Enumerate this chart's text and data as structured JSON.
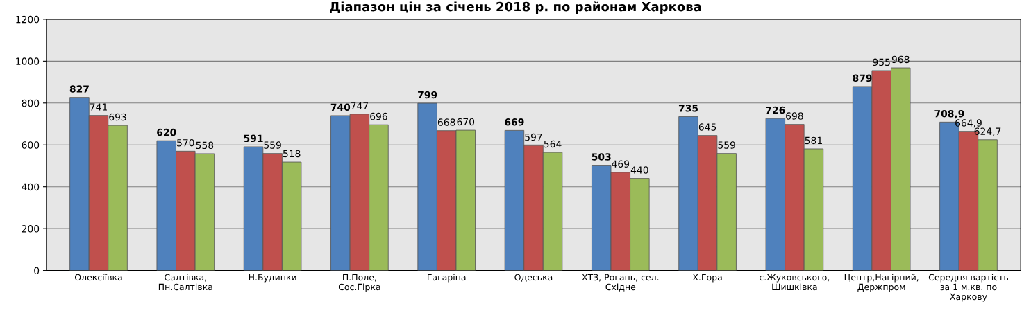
{
  "chart_data": {
    "type": "bar",
    "title": "Діапазон цін за січень 2018 р. по районам Харкова",
    "categories": [
      "Олексіївка",
      "Салтівка,\nПн.Салтівка",
      "Н.Будинки",
      "П.Поле,\nСос.Гірка",
      "Гагаріна",
      "Одеська",
      "ХТЗ, Рогань, сел.\nСхідне",
      "Х.Гора",
      "с.Жуковського,\nШишківка",
      "Центр,Нагірний,\nДержпром",
      "Середня вартість\nза 1 м.кв. по\nХаркову"
    ],
    "series": [
      {
        "color": "#4f81bd",
        "values": [
          827,
          620,
          591,
          740,
          799,
          669,
          503,
          735,
          726,
          879,
          708.9
        ],
        "value_labels": [
          "827",
          "620",
          "591",
          "740",
          "799",
          "669",
          "503",
          "735",
          "726",
          "879",
          "708,9"
        ]
      },
      {
        "color": "#c0504d",
        "values": [
          741,
          570,
          559,
          747,
          668,
          597,
          469,
          645,
          698,
          955,
          664.9
        ],
        "value_labels": [
          "741",
          "570",
          "559",
          "747",
          "668",
          "597",
          "469",
          "645",
          "698",
          "955",
          "664,9"
        ]
      },
      {
        "color": "#9bbb59",
        "values": [
          693,
          558,
          518,
          696,
          670,
          564,
          440,
          559,
          581,
          968,
          624.7
        ],
        "value_labels": [
          "693",
          "558",
          "518",
          "696",
          "670",
          "564",
          "440",
          "559",
          "581",
          "968",
          "624,7"
        ]
      }
    ],
    "ylim": [
      0,
      1200
    ],
    "yticks": [
      0,
      200,
      400,
      600,
      800,
      1000,
      1200
    ],
    "grid": "y",
    "legend": false
  }
}
